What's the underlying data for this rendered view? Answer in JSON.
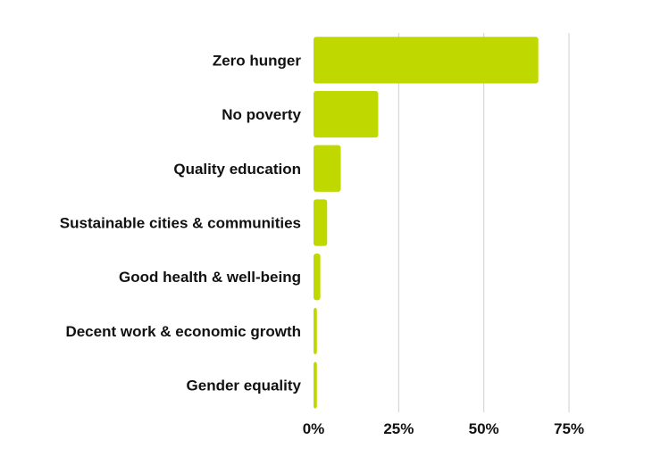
{
  "chart_data": {
    "type": "bar",
    "orientation": "horizontal",
    "categories": [
      "Zero hunger",
      "No poverty",
      "Quality education",
      "Sustainable cities & communities",
      "Good health & well-being",
      "Decent work & economic growth",
      "Gender equality"
    ],
    "values": [
      66,
      19,
      8,
      4,
      2,
      1,
      1
    ],
    "value_unit": "%",
    "xlim": [
      0,
      75
    ],
    "xticks": [
      0,
      25,
      50,
      75
    ],
    "xtick_labels": [
      "0%",
      "25%",
      "50%",
      "75%"
    ],
    "grid": true,
    "legend": "none",
    "title": "",
    "xlabel": "",
    "ylabel": "",
    "colors": {
      "bar": "#bfd800",
      "grid": "#cfcfcf",
      "text": "#111111"
    }
  }
}
